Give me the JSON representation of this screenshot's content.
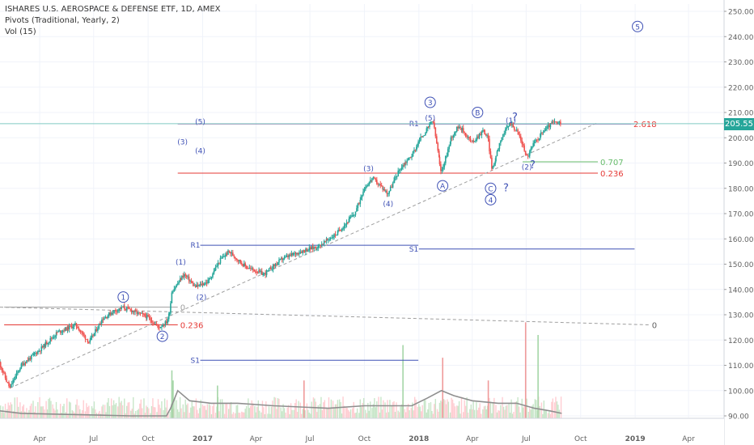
{
  "header": {
    "symbol": "ISHARES U.S. AEROSPACE & DEFENSE ETF, 1D, AMEX",
    "indicator_pivots": "Pivots (Traditional, Yearly, 2)",
    "indicator_vol": "Vol (15)"
  },
  "last_price_label": "205.55",
  "chart_data": {
    "type": "line",
    "title": "ISHARES U.S. AEROSPACE & DEFENSE ETF, 1D, AMEX",
    "y_ticks": [
      "90.00",
      "100.00",
      "110.00",
      "120.00",
      "130.00",
      "140.00",
      "150.00",
      "160.00",
      "170.00",
      "180.00",
      "190.00",
      "200.00",
      "210.00",
      "220.00",
      "230.00",
      "240.00",
      "250.00"
    ],
    "x_ticks": [
      "Apr",
      "Jul",
      "Oct",
      "2017",
      "Apr",
      "Jul",
      "Oct",
      "2018",
      "Apr",
      "Jul",
      "Oct",
      "2019",
      "Apr"
    ],
    "ylim": [
      86,
      253
    ],
    "x_range": [
      "2016-01-25",
      "2019-05-31"
    ],
    "last_price": 205.55,
    "price_path": [
      [
        "2016-01-25",
        111
      ],
      [
        "2016-02-05",
        104
      ],
      [
        "2016-02-11",
        101
      ],
      [
        "2016-03-01",
        110
      ],
      [
        "2016-04-01",
        116
      ],
      [
        "2016-05-01",
        123
      ],
      [
        "2016-06-01",
        126
      ],
      [
        "2016-06-24",
        119
      ],
      [
        "2016-07-15",
        128
      ],
      [
        "2016-08-01",
        131
      ],
      [
        "2016-08-20",
        133
      ],
      [
        "2016-09-10",
        131
      ],
      [
        "2016-10-01",
        129
      ],
      [
        "2016-10-20",
        125
      ],
      [
        "2016-11-01",
        127
      ],
      [
        "2016-11-08",
        132
      ],
      [
        "2016-11-10",
        139
      ],
      [
        "2016-11-25",
        144
      ],
      [
        "2016-12-01",
        146
      ],
      [
        "2016-12-20",
        141
      ],
      [
        "2017-01-10",
        143
      ],
      [
        "2017-02-01",
        152
      ],
      [
        "2017-02-15",
        155
      ],
      [
        "2017-03-15",
        149
      ],
      [
        "2017-04-15",
        146
      ],
      [
        "2017-05-15",
        152
      ],
      [
        "2017-06-15",
        155
      ],
      [
        "2017-07-15",
        157
      ],
      [
        "2017-08-15",
        162
      ],
      [
        "2017-09-15",
        170
      ],
      [
        "2017-10-01",
        180
      ],
      [
        "2017-10-15",
        184
      ],
      [
        "2017-11-10",
        178
      ],
      [
        "2017-12-01",
        188
      ],
      [
        "2017-12-20",
        193
      ],
      [
        "2018-01-05",
        200
      ],
      [
        "2018-01-20",
        205
      ],
      [
        "2018-01-25",
        207
      ],
      [
        "2018-02-08",
        186
      ],
      [
        "2018-02-25",
        200
      ],
      [
        "2018-03-10",
        205
      ],
      [
        "2018-04-01",
        198
      ],
      [
        "2018-04-20",
        203
      ],
      [
        "2018-04-28",
        200
      ],
      [
        "2018-05-05",
        187
      ],
      [
        "2018-05-20",
        200
      ],
      [
        "2018-06-05",
        206
      ],
      [
        "2018-06-20",
        201
      ],
      [
        "2018-07-03",
        192
      ],
      [
        "2018-07-15",
        198
      ],
      [
        "2018-08-01",
        203
      ],
      [
        "2018-08-15",
        206
      ],
      [
        "2018-08-30",
        205.5
      ]
    ],
    "volume": {
      "baseline": "90.00",
      "average_path": [
        [
          "2016-01-25",
          92
        ],
        [
          "2016-03-01",
          91
        ],
        [
          "2016-06-01",
          90.5
        ],
        [
          "2016-09-01",
          90
        ],
        [
          "2016-11-01",
          90
        ],
        [
          "2016-11-08",
          93
        ],
        [
          "2016-11-20",
          100
        ],
        [
          "2016-12-10",
          96
        ],
        [
          "2017-01-15",
          95
        ],
        [
          "2017-03-01",
          95
        ],
        [
          "2017-05-01",
          94
        ],
        [
          "2017-08-01",
          93
        ],
        [
          "2017-10-01",
          94
        ],
        [
          "2017-12-20",
          94
        ],
        [
          "2018-01-15",
          97
        ],
        [
          "2018-02-08",
          100
        ],
        [
          "2018-03-01",
          98
        ],
        [
          "2018-04-01",
          96
        ],
        [
          "2018-05-15",
          95
        ],
        [
          "2018-06-15",
          95
        ],
        [
          "2018-07-15",
          93
        ],
        [
          "2018-08-10",
          92
        ],
        [
          "2018-08-30",
          91
        ]
      ],
      "spikes": [
        [
          "2016-11-09",
          108,
          "green"
        ],
        [
          "2016-11-11",
          104,
          "green"
        ],
        [
          "2017-01-25",
          102,
          "green"
        ],
        [
          "2017-06-20",
          104,
          "red"
        ],
        [
          "2017-12-04",
          118,
          "green"
        ],
        [
          "2018-02-09",
          113,
          "red"
        ],
        [
          "2018-04-27",
          104,
          "red"
        ],
        [
          "2018-06-29",
          127,
          "red"
        ],
        [
          "2018-07-20",
          122,
          "green"
        ]
      ]
    },
    "pivot_lines": [
      {
        "label": "R1",
        "level": 157.5,
        "from": "2016-12-28",
        "to": "2017-12-31"
      },
      {
        "label": "S1",
        "level": 112.0,
        "from": "2016-12-28",
        "to": "2017-12-31"
      },
      {
        "label": "R1",
        "level": 205.5,
        "from": "2018-01-01",
        "to": "2018-12-31"
      },
      {
        "label": "S1",
        "level": 156.0,
        "from": "2018-01-01",
        "to": "2018-12-31"
      }
    ],
    "fib_lines": [
      {
        "label": "0",
        "level": 133.0,
        "from": "2016-02-01",
        "to": "2016-11-20",
        "color": "#9e9e9e"
      },
      {
        "label": "0.236",
        "level": 126.0,
        "from": "2016-02-01",
        "to": "2016-11-20",
        "color": "#e53935"
      },
      {
        "label": "2.618",
        "level": 205.5,
        "from": "2016-11-20",
        "to": "2018-12-25",
        "color": "#e53935"
      },
      {
        "label": "0.707",
        "level": 190.5,
        "from": "2018-06-25",
        "to": "2018-10-30",
        "color": "#66bb6a"
      },
      {
        "label": "0.236",
        "level": 186.0,
        "from": "2016-11-20",
        "to": "2018-10-30",
        "color": "#e53935"
      }
    ],
    "extra_lines": [
      {
        "from": [
          "2016-02-11",
          101
        ],
        "to": [
          "2018-10-30",
          206
        ],
        "color": "#9e9e9e",
        "dash": true
      },
      {
        "from": [
          "2016-01-25",
          133
        ],
        "to": [
          "2019-01-25",
          126
        ],
        "color": "#9e9e9e",
        "dash": true,
        "end_label": "0"
      },
      {
        "from": [
          "2016-11-20",
          205.5
        ],
        "to": [
          "2018-12-25",
          205.5
        ],
        "color": "#7e57c2",
        "dash": false
      },
      {
        "from": [
          "2016-01-25",
          205.55
        ],
        "to": [
          "2019-05-31",
          205.55
        ],
        "color": "#80cbc4",
        "dash": false
      }
    ],
    "wave_labels": [
      {
        "text": "(5)",
        "date": "2016-12-28",
        "price": 206.5,
        "circled": false
      },
      {
        "text": "(3)",
        "date": "2016-11-28",
        "price": 198.5,
        "circled": false
      },
      {
        "text": "(4)",
        "date": "2016-12-28",
        "price": 195,
        "circled": false
      },
      {
        "text": "1",
        "date": "2016-08-20",
        "price": 137,
        "circled": true
      },
      {
        "text": "2",
        "date": "2016-10-25",
        "price": 121.5,
        "circled": true
      },
      {
        "text": "(1)",
        "date": "2016-11-25",
        "price": 151,
        "circled": false
      },
      {
        "text": "(2)",
        "date": "2016-12-30",
        "price": 137,
        "circled": false
      },
      {
        "text": "(3)",
        "date": "2017-10-08",
        "price": 188,
        "circled": false
      },
      {
        "text": "(4)",
        "date": "2017-11-10",
        "price": 174,
        "circled": false
      },
      {
        "text": "3",
        "date": "2018-01-20",
        "price": 214,
        "circled": true
      },
      {
        "text": "(5)",
        "date": "2018-01-20",
        "price": 208,
        "circled": false
      },
      {
        "text": "B",
        "date": "2018-04-10",
        "price": 210,
        "circled": true
      },
      {
        "text": "(1)",
        "date": "2018-06-05",
        "price": 207,
        "circled": false
      },
      {
        "text": "?",
        "date": "2018-06-12",
        "price": 208,
        "circled": false
      },
      {
        "text": "A",
        "date": "2018-02-10",
        "price": 181,
        "circled": true
      },
      {
        "text": "C",
        "date": "2018-05-02",
        "price": 180,
        "circled": true
      },
      {
        "text": "4",
        "date": "2018-05-02",
        "price": 175.5,
        "circled": true
      },
      {
        "text": "?",
        "date": "2018-05-28",
        "price": 180,
        "circled": false
      },
      {
        "text": "(2)",
        "date": "2018-07-02",
        "price": 188.5,
        "circled": false
      },
      {
        "text": "?",
        "date": "2018-07-12",
        "price": 189,
        "circled": false
      },
      {
        "text": "5",
        "date": "2019-01-05",
        "price": 244,
        "circled": true
      }
    ]
  }
}
